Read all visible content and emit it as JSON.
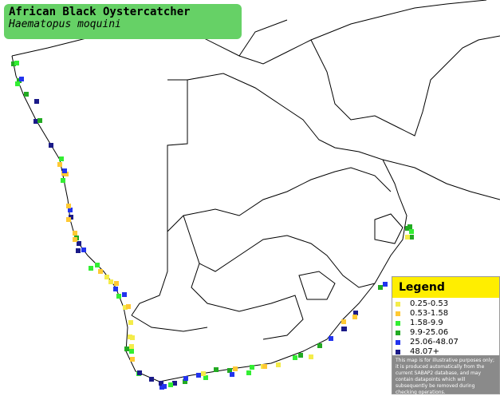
{
  "header": {
    "title": "African Black Oystercatcher",
    "subtitle": "Haematopus moquini"
  },
  "legend": {
    "title": "Legend",
    "items": [
      {
        "label": "0.25-0.53",
        "color": "#f4ec4a"
      },
      {
        "label": "0.53-1.58",
        "color": "#ffc933"
      },
      {
        "label": "1.58-9.9",
        "color": "#33ee33"
      },
      {
        "label": "9.9-25.06",
        "color": "#22aa22"
      },
      {
        "label": "25.06-48.07",
        "color": "#2233ee"
      },
      {
        "label": "48.07+",
        "color": "#1a1a88"
      }
    ],
    "note": "This map is for illustrative purposes only; it is produced automatically from the current SABAP2 database, and may contain datapoints which will subsequently be removed during checking operations."
  }
}
